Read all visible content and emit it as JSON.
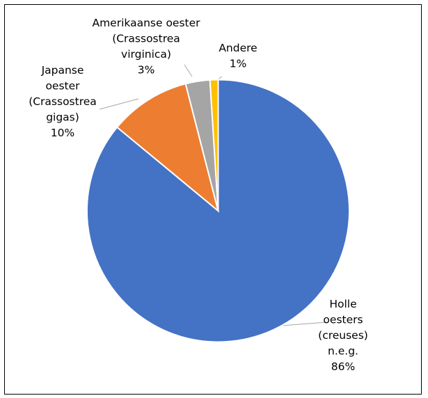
{
  "chart_data": {
    "type": "pie",
    "start_angle_deg": 0,
    "direction": "clockwise",
    "slices": [
      {
        "label_lines": [
          "Holle",
          "oesters",
          "(creuses)",
          "n.e.g."
        ],
        "pct_label": "86%",
        "value": 86,
        "color": "#4472C4"
      },
      {
        "label_lines": [
          "Japanse",
          "oester",
          "(Crassostrea",
          "gigas)"
        ],
        "pct_label": "10%",
        "value": 10,
        "color": "#ED7D31"
      },
      {
        "label_lines": [
          "Amerikaanse oester",
          "(Crassostrea",
          "virginica)"
        ],
        "pct_label": "3%",
        "value": 3,
        "color": "#A5A5A5"
      },
      {
        "label_lines": [
          "Andere"
        ],
        "pct_label": "1%",
        "value": 1,
        "color": "#FFC000"
      }
    ],
    "legend": "none"
  }
}
